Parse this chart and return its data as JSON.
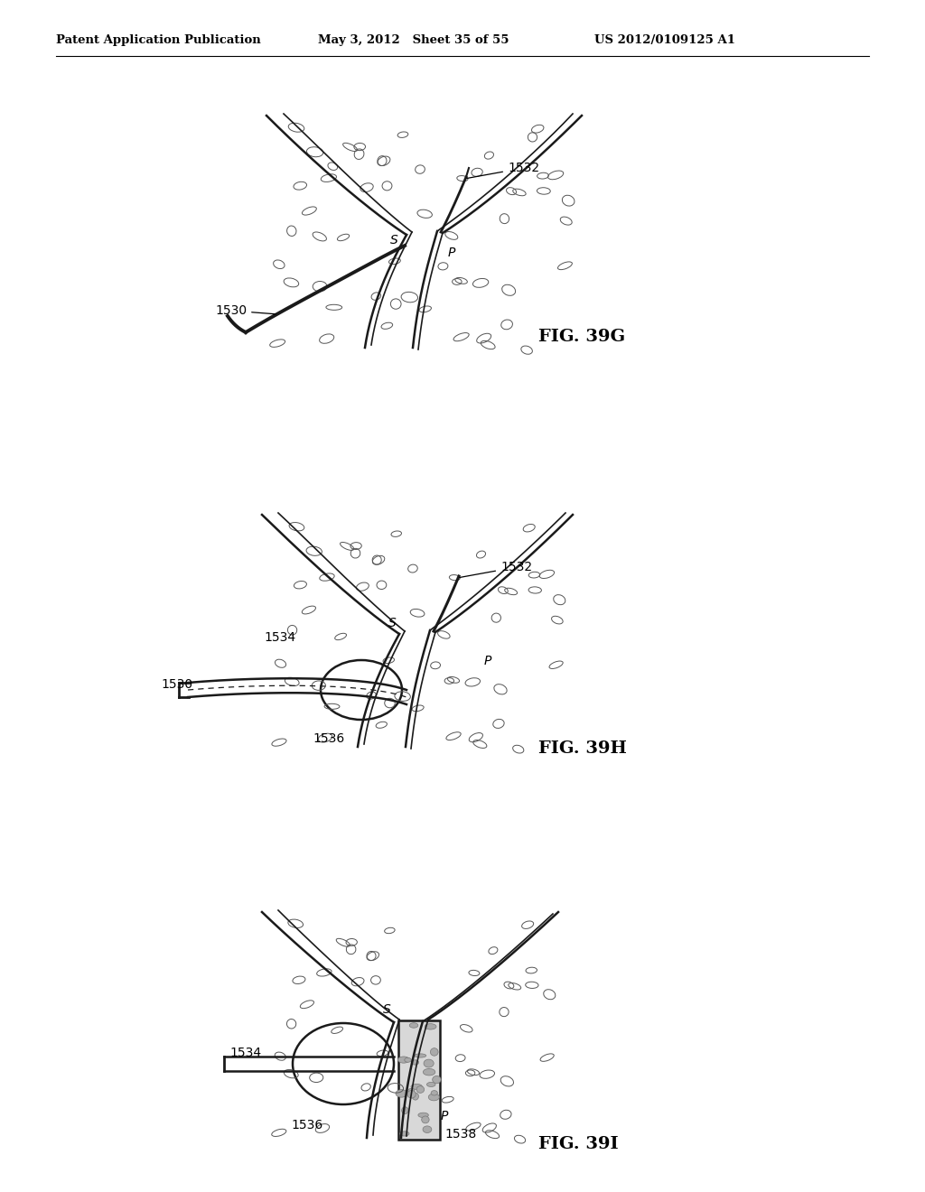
{
  "header_left": "Patent Application Publication",
  "header_mid": "May 3, 2012   Sheet 35 of 55",
  "header_right": "US 2012/0109125 A1",
  "fig_labels": [
    "FIG. 39G",
    "FIG. 39H",
    "FIG. 39I"
  ],
  "background_color": "#ffffff",
  "line_color": "#1a1a1a"
}
